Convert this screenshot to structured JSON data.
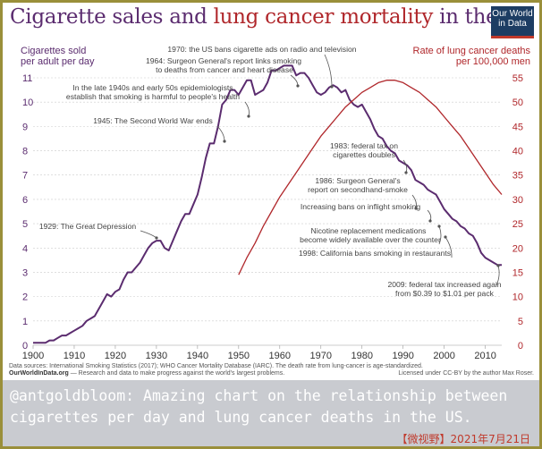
{
  "title": {
    "part1": "Cigarette sales",
    "part2": " and ",
    "part3": "lung cancer mortality",
    "part4": " in the US"
  },
  "logo": {
    "line1": "Our World",
    "line2": "in Data"
  },
  "colors": {
    "cigarette": "#5b2c6f",
    "lung": "#b0272b",
    "text": "#444444",
    "grid": "#cccccc",
    "caption_bg": "#c9cbd0",
    "caption_date": "#c0392b"
  },
  "chart_data": {
    "type": "line",
    "x_range": [
      1900,
      2014
    ],
    "x_ticks": [
      "1900",
      "1910",
      "1920",
      "1930",
      "1940",
      "1950",
      "1960",
      "1970",
      "1980",
      "1990",
      "2000",
      "2010"
    ],
    "y_left_label_1": "Cigarettes sold",
    "y_left_label_2": "per adult per day",
    "y_left_ticks": [
      "0",
      "1",
      "2",
      "3",
      "4",
      "5",
      "6",
      "7",
      "8",
      "9",
      "10",
      "11"
    ],
    "y_left_range": [
      0,
      11
    ],
    "y_right_label_1": "Rate of lung cancer deaths",
    "y_right_label_2": "per 100,000 men",
    "y_right_ticks": [
      "0",
      "5",
      "10",
      "15",
      "20",
      "25",
      "30",
      "35",
      "40",
      "45",
      "50",
      "55"
    ],
    "y_right_range": [
      0,
      55
    ],
    "series": [
      {
        "axis": "left",
        "x": [
          1900,
          1901,
          1902,
          1903,
          1904,
          1905,
          1906,
          1907,
          1908,
          1909,
          1910,
          1911,
          1912,
          1913,
          1914,
          1915,
          1916,
          1917,
          1918,
          1919,
          1920,
          1921,
          1922,
          1923,
          1924,
          1925,
          1926,
          1927,
          1928,
          1929,
          1930,
          1931,
          1932,
          1933,
          1934,
          1935,
          1936,
          1937,
          1938,
          1939,
          1940,
          1941,
          1942,
          1943,
          1944,
          1945,
          1946,
          1947,
          1948,
          1949,
          1950,
          1951,
          1952,
          1953,
          1954,
          1955,
          1956,
          1957,
          1958,
          1959,
          1960,
          1961,
          1962,
          1963,
          1964,
          1965,
          1966,
          1967,
          1968,
          1969,
          1970,
          1971,
          1972,
          1973,
          1974,
          1975,
          1976,
          1977,
          1978,
          1979,
          1980,
          1981,
          1982,
          1983,
          1984,
          1985,
          1986,
          1987,
          1988,
          1989,
          1990,
          1991,
          1992,
          1993,
          1994,
          1995,
          1996,
          1997,
          1998,
          1999,
          2000,
          2001,
          2002,
          2003,
          2004,
          2005,
          2006,
          2007,
          2008,
          2009,
          2010,
          2011,
          2012,
          2013,
          2014
        ],
        "values": [
          0.1,
          0.1,
          0.1,
          0.1,
          0.2,
          0.2,
          0.3,
          0.4,
          0.4,
          0.5,
          0.6,
          0.7,
          0.8,
          1.0,
          1.1,
          1.2,
          1.5,
          1.8,
          2.1,
          2.0,
          2.2,
          2.3,
          2.7,
          3.0,
          3.0,
          3.2,
          3.4,
          3.7,
          4.0,
          4.2,
          4.3,
          4.3,
          4.0,
          3.9,
          4.3,
          4.7,
          5.1,
          5.4,
          5.4,
          5.8,
          6.2,
          6.9,
          7.7,
          8.3,
          8.3,
          9.0,
          9.9,
          10.1,
          10.5,
          10.5,
          10.3,
          10.6,
          10.9,
          10.9,
          10.3,
          10.4,
          10.5,
          10.8,
          11.3,
          11.3,
          11.4,
          11.5,
          11.5,
          11.5,
          11.1,
          11.2,
          11.2,
          11.0,
          10.7,
          10.4,
          10.3,
          10.4,
          10.6,
          10.7,
          10.6,
          10.4,
          10.5,
          10.1,
          9.9,
          9.8,
          9.9,
          9.6,
          9.3,
          8.9,
          8.6,
          8.5,
          8.2,
          8.0,
          7.9,
          7.6,
          7.5,
          7.4,
          7.2,
          6.8,
          6.7,
          6.6,
          6.4,
          6.3,
          6.2,
          5.9,
          5.6,
          5.4,
          5.2,
          5.1,
          4.9,
          4.8,
          4.6,
          4.5,
          4.2,
          3.8,
          3.6,
          3.5,
          3.4,
          3.3,
          3.3
        ]
      },
      {
        "axis": "right",
        "x": [
          1950,
          1952,
          1954,
          1956,
          1958,
          1960,
          1962,
          1964,
          1966,
          1968,
          1970,
          1972,
          1974,
          1976,
          1978,
          1980,
          1982,
          1984,
          1986,
          1988,
          1990,
          1992,
          1994,
          1996,
          1998,
          2000,
          2002,
          2004,
          2006,
          2008,
          2010,
          2012,
          2014
        ],
        "values": [
          14.5,
          18,
          21,
          24.5,
          27.5,
          30.5,
          33,
          35.5,
          38,
          40.5,
          43,
          45,
          47,
          49,
          50.5,
          52,
          53,
          54,
          54.5,
          54.5,
          54,
          53,
          52,
          50.5,
          49,
          47,
          45,
          43,
          40.5,
          38,
          35.5,
          33,
          31
        ]
      }
    ]
  },
  "annotations": [
    {
      "id": "ad-ban",
      "text": "1970: the US bans cigarette ads on radio and television"
    },
    {
      "id": "sg-1964-l1",
      "text": "1964: Surgeon General's report links smoking"
    },
    {
      "id": "sg-1964-l2",
      "text": "to deaths from cancer and heart disease"
    },
    {
      "id": "epi-l1",
      "text": "In the late 1940s and early 50s epidemiologists"
    },
    {
      "id": "epi-l2",
      "text": "establish that smoking is harmful to people's health"
    },
    {
      "id": "ww2",
      "text": "1945: The Second World War ends"
    },
    {
      "id": "depression",
      "text": "1929: The Great Depression"
    },
    {
      "id": "tax-1983-l1",
      "text": "1983: federal tax on"
    },
    {
      "id": "tax-1983-l2",
      "text": "cigarettes doubles"
    },
    {
      "id": "sg-1986-l1",
      "text": "1986: Surgeon General's"
    },
    {
      "id": "sg-1986-l2",
      "text": "report on secondhand-smoke"
    },
    {
      "id": "flight",
      "text": "Increasing bans on inflight smoking"
    },
    {
      "id": "nrt-l1",
      "text": "Nicotine replacement medications"
    },
    {
      "id": "nrt-l2",
      "text": "become widely available over the counter"
    },
    {
      "id": "cal-1998",
      "text": "1998: California bans smoking in restaurants"
    },
    {
      "id": "tax-2009-l1",
      "text": "2009: federal tax increased again"
    },
    {
      "id": "tax-2009-l2",
      "text": "from $0.39 to $1.01 per pack"
    }
  ],
  "footer": {
    "sources": "Data sources: International Smoking Statistics (2017); WHO Cancer Mortality Database (IARC). The death rate from lung-cancer is age-standardized.",
    "site": "OurWorldInData.org",
    "tagline": " — Research and data to make progress against the world's largest problems.",
    "license": "Licensed under CC-BY by the author Max Roser."
  },
  "caption": {
    "message": "@antgoldbloom: Amazing chart on the relationship between cigarettes per day and lung cancer deaths in the US.",
    "date": "【微视野】2021年7月21日"
  }
}
